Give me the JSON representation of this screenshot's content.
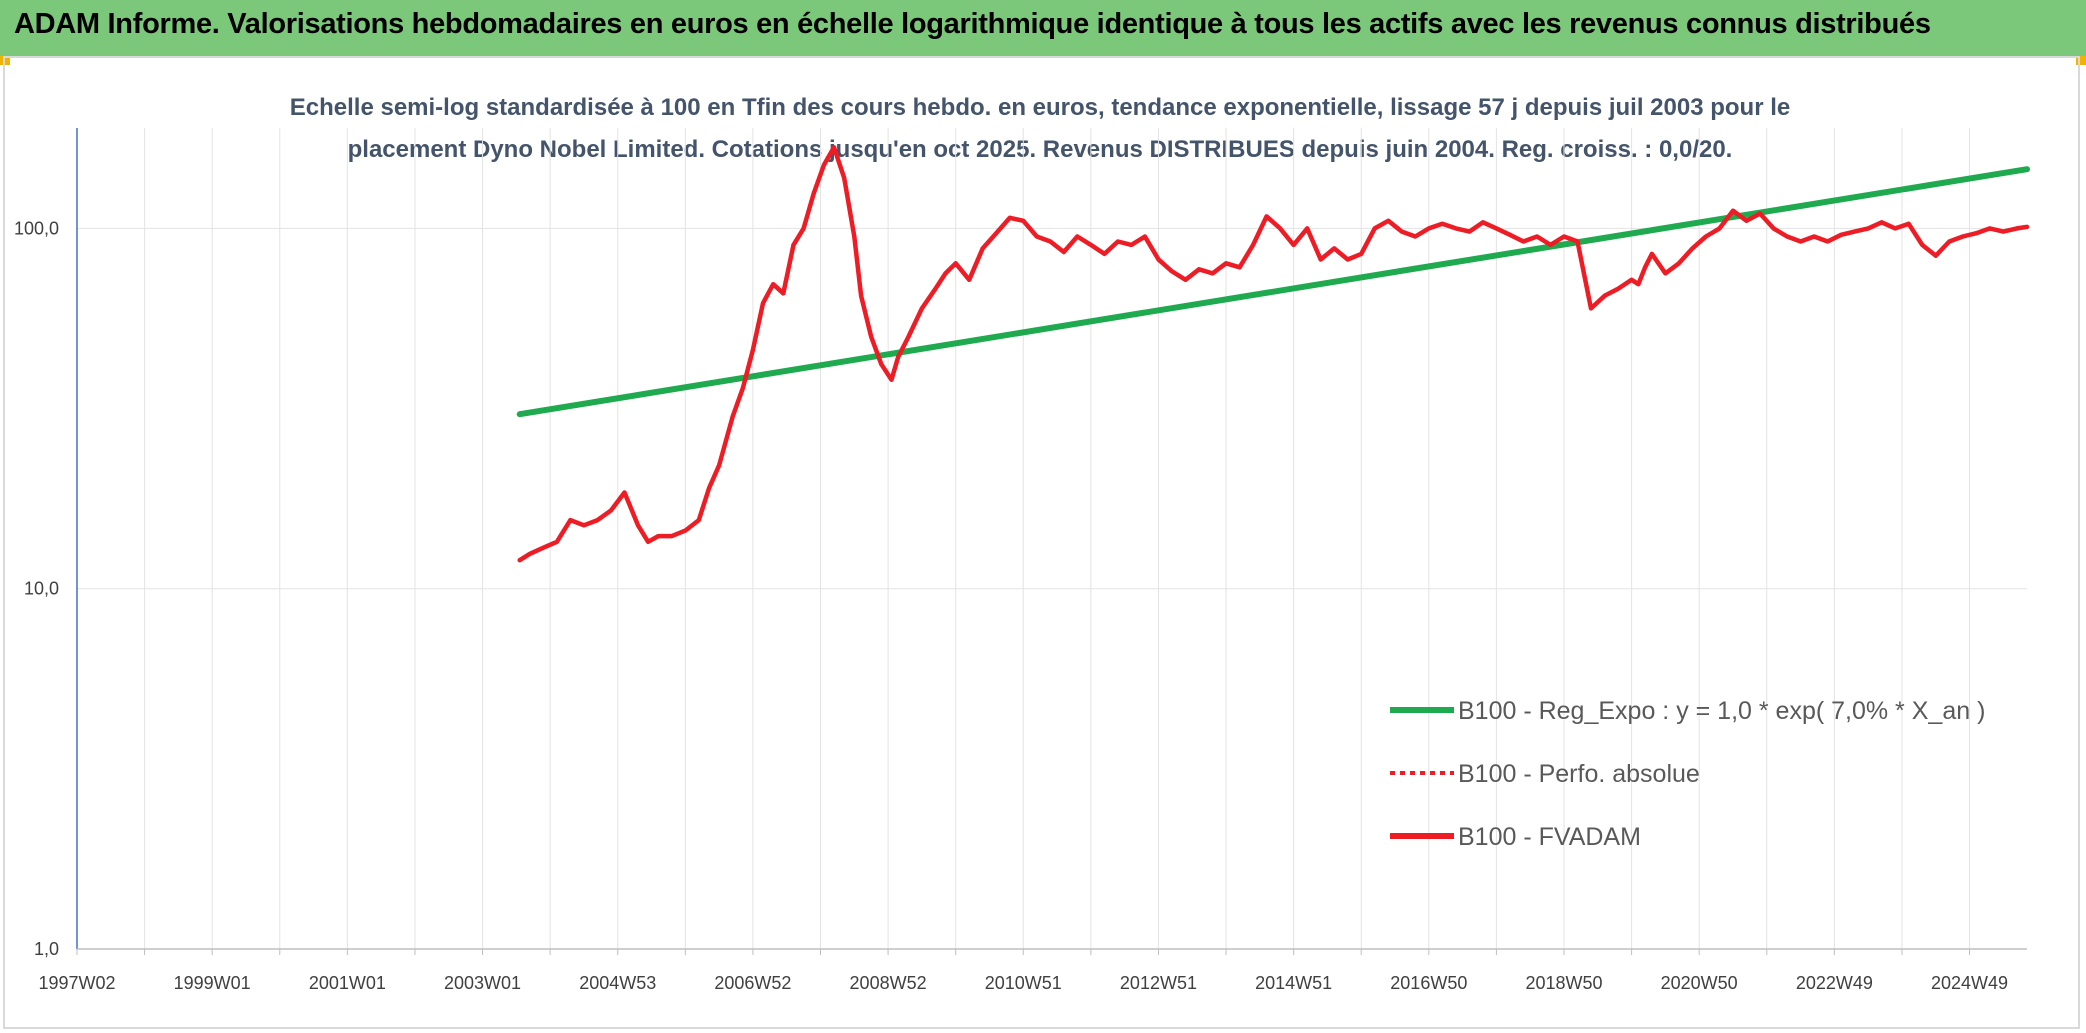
{
  "header": {
    "title": "ADAM Informe. Valorisations hebdomadaires en euros en échelle logarithmique identique à tous les actifs avec les revenus connus distribués",
    "background": "#7bc87b",
    "corner_color": "#f0b400"
  },
  "chart_data": {
    "type": "line",
    "y_scale": "log",
    "title_lines": [
      "Echelle semi-log standardisée à 100 en Tfin des cours hebdo. en euros, tendance exponentielle, lissage 57 j depuis juil 2003 pour le",
      "placement Dyno Nobel Limited. Cotations jusqu'en oct 2025. Revenus DISTRIBUES depuis juin 2004. Reg. croiss. : 0,0/20."
    ],
    "ylim": [
      1,
      190
    ],
    "y_ticks": [
      {
        "value": 1,
        "label": "1,0"
      },
      {
        "value": 10,
        "label": "10,0"
      },
      {
        "value": 100,
        "label": "100,0"
      }
    ],
    "xlim": [
      1997.0,
      2025.85
    ],
    "x_ticks": [
      {
        "x": 1997.0,
        "label": "1997W02"
      },
      {
        "x": 1999.0,
        "label": "1999W01"
      },
      {
        "x": 2001.0,
        "label": "2001W01"
      },
      {
        "x": 2003.0,
        "label": "2003W01"
      },
      {
        "x": 2005.0,
        "label": "2004W53"
      },
      {
        "x": 2007.0,
        "label": "2006W52"
      },
      {
        "x": 2009.0,
        "label": "2008W52"
      },
      {
        "x": 2011.0,
        "label": "2010W51"
      },
      {
        "x": 2013.0,
        "label": "2012W51"
      },
      {
        "x": 2015.0,
        "label": "2014W51"
      },
      {
        "x": 2017.0,
        "label": "2016W50"
      },
      {
        "x": 2019.0,
        "label": "2018W50"
      },
      {
        "x": 2021.0,
        "label": "2020W50"
      },
      {
        "x": 2023.0,
        "label": "2022W49"
      },
      {
        "x": 2025.0,
        "label": "2024W49"
      }
    ],
    "grid": true,
    "legend_position": "right",
    "series": [
      {
        "name": "B100 - Reg_Expo : y = 1,0 * exp( 7,0% *  X_an )",
        "style": "solid",
        "color": "#1faa4f",
        "x": [
          2003.55,
          2025.85
        ],
        "y": [
          30.5,
          146
        ]
      },
      {
        "name": "B100 - Perfo. absolue",
        "style": "dotted",
        "color": "#ee1c25",
        "x": [],
        "y": []
      },
      {
        "name": "B100 - FVADAM",
        "style": "solid",
        "color": "#ee1c25",
        "x": [
          2003.55,
          2003.7,
          2003.9,
          2004.1,
          2004.3,
          2004.5,
          2004.7,
          2004.9,
          2005.1,
          2005.3,
          2005.45,
          2005.6,
          2005.8,
          2006.0,
          2006.2,
          2006.35,
          2006.5,
          2006.7,
          2006.85,
          2007.0,
          2007.15,
          2007.3,
          2007.45,
          2007.6,
          2007.75,
          2007.9,
          2008.05,
          2008.2,
          2008.35,
          2008.5,
          2008.6,
          2008.75,
          2008.9,
          2009.05,
          2009.15,
          2009.3,
          2009.5,
          2009.7,
          2009.85,
          2010.0,
          2010.2,
          2010.4,
          2010.6,
          2010.8,
          2011.0,
          2011.2,
          2011.4,
          2011.6,
          2011.8,
          2012.0,
          2012.2,
          2012.4,
          2012.6,
          2012.8,
          2013.0,
          2013.2,
          2013.4,
          2013.6,
          2013.8,
          2014.0,
          2014.2,
          2014.4,
          2014.6,
          2014.8,
          2015.0,
          2015.2,
          2015.4,
          2015.6,
          2015.8,
          2016.0,
          2016.2,
          2016.4,
          2016.6,
          2016.8,
          2017.0,
          2017.2,
          2017.4,
          2017.6,
          2017.8,
          2018.0,
          2018.2,
          2018.4,
          2018.6,
          2018.8,
          2019.0,
          2019.2,
          2019.4,
          2019.6,
          2019.8,
          2020.0,
          2020.1,
          2020.2,
          2020.3,
          2020.5,
          2020.7,
          2020.9,
          2021.1,
          2021.3,
          2021.5,
          2021.7,
          2021.9,
          2022.1,
          2022.3,
          2022.5,
          2022.7,
          2022.9,
          2023.1,
          2023.3,
          2023.5,
          2023.7,
          2023.9,
          2024.1,
          2024.3,
          2024.5,
          2024.7,
          2024.9,
          2025.1,
          2025.3,
          2025.5,
          2025.7,
          2025.85
        ],
        "y": [
          12.0,
          12.5,
          13.0,
          13.5,
          15.5,
          15.0,
          15.5,
          16.5,
          18.5,
          15.0,
          13.5,
          14.0,
          14.0,
          14.5,
          15.5,
          19.0,
          22.0,
          30.0,
          36.0,
          46.0,
          62.0,
          70.0,
          66.0,
          90.0,
          100.0,
          125.0,
          150.0,
          168.0,
          138.0,
          95.0,
          65.0,
          50.0,
          42.0,
          38.0,
          44.0,
          50.0,
          60.0,
          68.0,
          75.0,
          80.0,
          72.0,
          88.0,
          97.0,
          107.0,
          105.0,
          95.0,
          92.0,
          86.0,
          95.0,
          90.0,
          85.0,
          92.0,
          90.0,
          95.0,
          82.0,
          76.0,
          72.0,
          77.0,
          75.0,
          80.0,
          78.0,
          90.0,
          108.0,
          100.0,
          90.0,
          100.0,
          82.0,
          88.0,
          82.0,
          85.0,
          100.0,
          105.0,
          98.0,
          95.0,
          100.0,
          103.0,
          100.0,
          98.0,
          104.0,
          100.0,
          96.0,
          92.0,
          95.0,
          90.0,
          95.0,
          92.0,
          60.0,
          65.0,
          68.0,
          72.0,
          70.0,
          78.0,
          85.0,
          75.0,
          80.0,
          88.0,
          95.0,
          100.0,
          112.0,
          105.0,
          110.0,
          100.0,
          95.0,
          92.0,
          95.0,
          92.0,
          96.0,
          98.0,
          100.0,
          104.0,
          100.0,
          103.0,
          90.0,
          84.0,
          92.0,
          95.0,
          97.0,
          100.0,
          98.0,
          100.0,
          101.0
        ]
      }
    ]
  }
}
